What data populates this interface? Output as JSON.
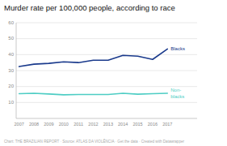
{
  "chart_data": {
    "type": "line",
    "title": "Murder rate per 100,000 people, according to race",
    "footer": "Chart: THE BRAZILIAN REPORT · Source: ATLAS DA VIOLÊNCIA · Get the data · Created with Datawrapper",
    "x": [
      2007,
      2008,
      2009,
      2010,
      2011,
      2012,
      2013,
      2014,
      2015,
      2016,
      2017
    ],
    "series": [
      {
        "name": "Blacks",
        "color": "#1a3a8c",
        "values": [
          32.5,
          34.0,
          34.5,
          35.5,
          35.0,
          36.5,
          36.5,
          39.5,
          39.0,
          37.0,
          43.5
        ]
      },
      {
        "name": "Non-\nblacks",
        "color": "#4ecdc4",
        "values": [
          15.5,
          15.8,
          15.3,
          14.8,
          15.0,
          15.0,
          15.0,
          15.8,
          15.2,
          15.5,
          15.8
        ]
      }
    ],
    "xlim": [
      2006.8,
      2019.0
    ],
    "xticks": [
      2007,
      2008,
      2009,
      2010,
      2011,
      2012,
      2013,
      2014,
      2015,
      2016,
      2017
    ],
    "ylim": [
      0,
      60
    ],
    "yticks": [
      10,
      20,
      30,
      40,
      50,
      60
    ],
    "grid": true
  }
}
